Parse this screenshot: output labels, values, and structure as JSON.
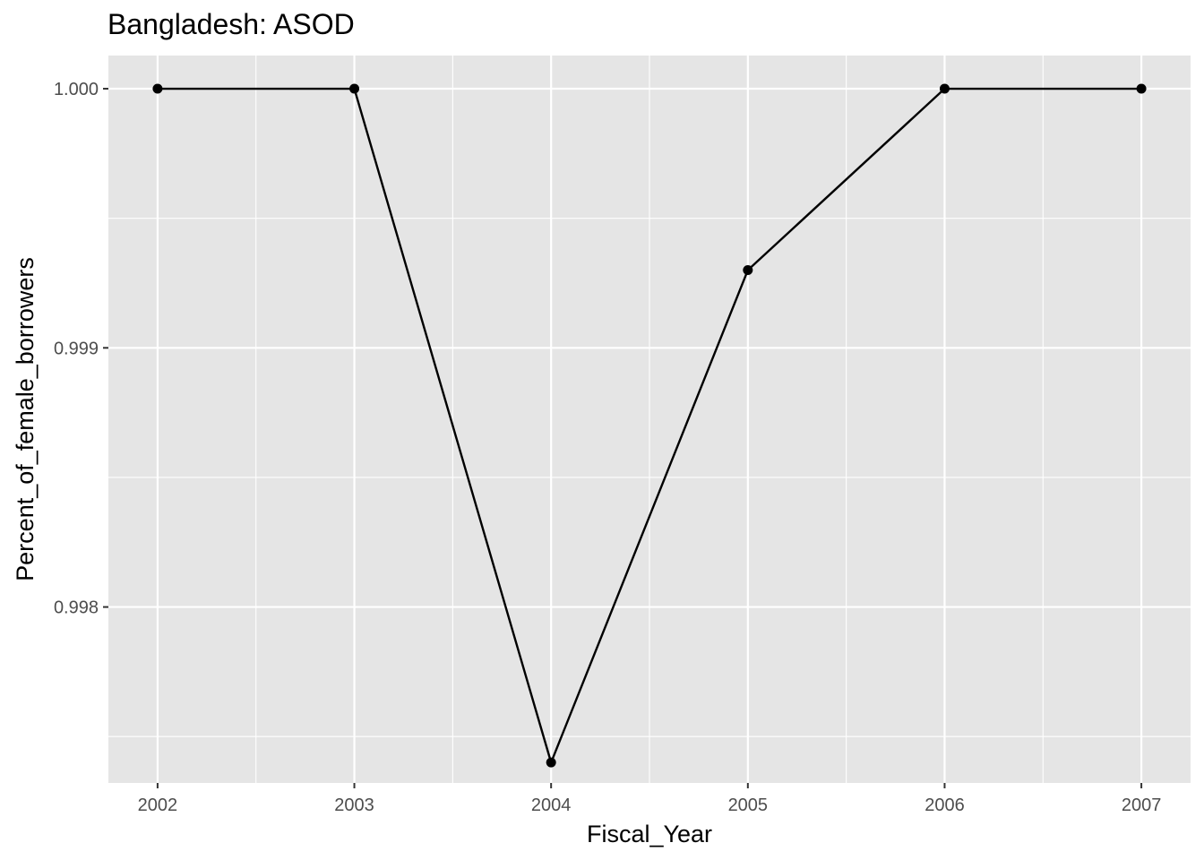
{
  "chart_data": {
    "type": "line",
    "title": "Bangladesh:  ASOD",
    "xlabel": "Fiscal_Year",
    "ylabel": "Percent_of_female_borrowers",
    "x": [
      2002,
      2003,
      2004,
      2005,
      2006,
      2007
    ],
    "y": [
      1.0,
      1.0,
      0.9974,
      0.9993,
      1.0,
      1.0
    ],
    "x_ticks": [
      2002,
      2003,
      2004,
      2005,
      2006,
      2007
    ],
    "x_tick_labels": [
      "2002",
      "2003",
      "2004",
      "2005",
      "2006",
      "2007"
    ],
    "y_ticks": [
      0.998,
      0.999,
      1.0
    ],
    "y_tick_labels": [
      "0.998",
      "0.999",
      "1.000"
    ],
    "xlim": [
      2001.75,
      2007.25
    ],
    "ylim": [
      0.997321,
      1.000128
    ],
    "grid": true,
    "background": "#E5E5E5",
    "grid_color": "#FFFFFF",
    "line_color": "#000000",
    "point_color": "#000000"
  }
}
